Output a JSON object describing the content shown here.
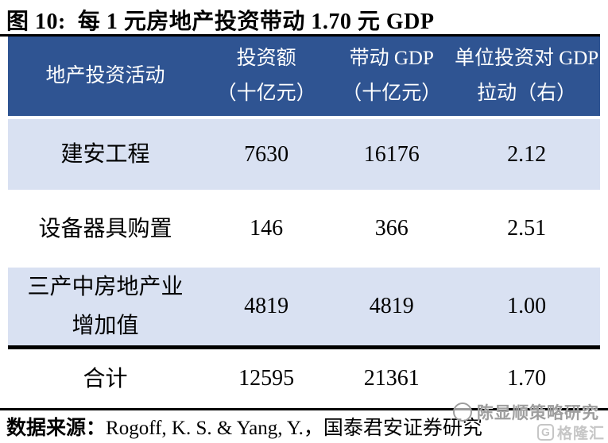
{
  "title": "图 10:  每 1 元房地产投资带动 1.70 元 GDP",
  "colors": {
    "header_bg": "#2F5492",
    "header_text": "#FFFFFF",
    "row_alt": "#D9E1F2",
    "rule": "#000000",
    "watermark": "#9E9E9E",
    "logo": "#C6C6C6"
  },
  "chart_data": {
    "type": "table",
    "title": "图 10: 每 1 元房地产投资带动 1.70 元 GDP",
    "columns": [
      "地产投资活动",
      "投资额（十亿元）",
      "带动 GDP（十亿元）",
      "单位投资对 GDP 拉动（右）"
    ],
    "rows": [
      [
        "建安工程",
        7630,
        16176,
        2.12
      ],
      [
        "设备器具购置",
        146,
        366,
        2.51
      ],
      [
        "三产中房地产业增加值",
        4819,
        4819,
        1.0
      ],
      [
        "合计",
        12595,
        21361,
        1.7
      ]
    ]
  },
  "table": {
    "columns": [
      {
        "line1": "地产投资活动",
        "line2": ""
      },
      {
        "line1": "投资额",
        "line2": "（十亿元）"
      },
      {
        "line1": "带动 GDP",
        "line2": "（十亿元）"
      },
      {
        "line1": "单位投资对 GDP",
        "line2": "拉动（右）"
      }
    ],
    "rows": [
      {
        "activity": "建安工程",
        "investment": "7630",
        "gdp": "16176",
        "ratio": "2.12"
      },
      {
        "activity": "设备器具购置",
        "investment": "146",
        "gdp": "366",
        "ratio": "2.51"
      },
      {
        "activity": "三产中房地产业增加值",
        "investment": "4819",
        "gdp": "4819",
        "ratio": "1.00"
      },
      {
        "activity": "合计",
        "investment": "12595",
        "gdp": "21361",
        "ratio": "1.70"
      }
    ]
  },
  "source": {
    "prefix": "数据来源：",
    "text": "Rogoff, K. S. & Yang, Y.，国泰君安证券研究"
  },
  "watermark": {
    "name": "陈显顺策略研究",
    "logo_glyph": "G",
    "logo_text": "格隆汇"
  }
}
